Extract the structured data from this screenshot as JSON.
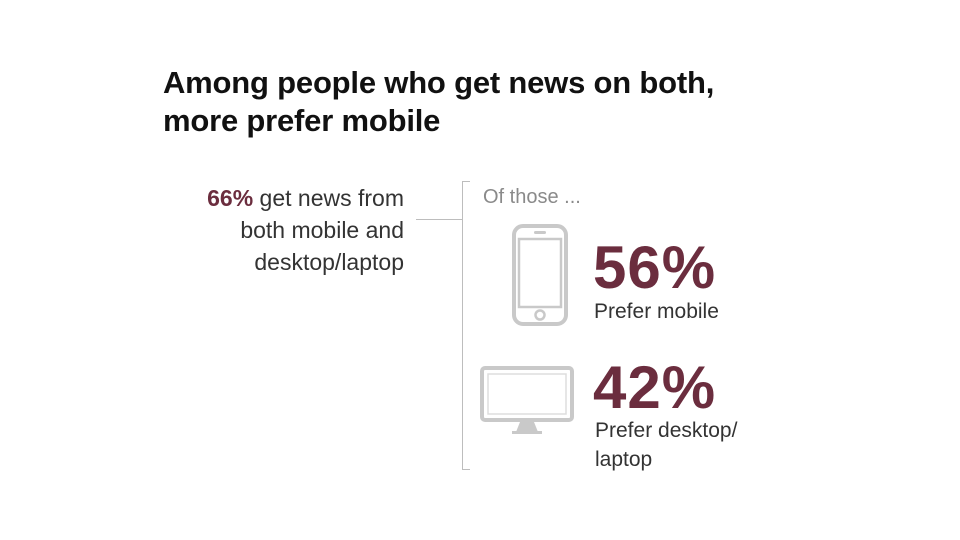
{
  "title": "Among people who get news on both, more prefer mobile",
  "intro": {
    "percent": "66%",
    "text": " get news from both mobile and desktop/laptop"
  },
  "of_those": "Of those ...",
  "stats": [
    {
      "value": "56%",
      "label": "Prefer mobile",
      "icon": "smartphone-icon"
    },
    {
      "value": "42%",
      "label": "Prefer desktop/ laptop",
      "icon": "desktop-monitor-icon"
    }
  ],
  "colors": {
    "accent": "#6b2d3e",
    "icon_gray": "#c9c9c9",
    "bracket_gray": "#bdbdbd",
    "title": "#111111",
    "body_text": "#333333"
  },
  "chart_data": {
    "type": "bar",
    "categories": [
      "Prefer mobile",
      "Prefer desktop/ laptop"
    ],
    "values": [
      56,
      42
    ],
    "unit": "%",
    "base": {
      "value": 66,
      "label": "get news from both mobile and desktop/laptop"
    },
    "title": "Among people who get news on both, more prefer mobile",
    "xlabel": "",
    "ylabel": ""
  }
}
